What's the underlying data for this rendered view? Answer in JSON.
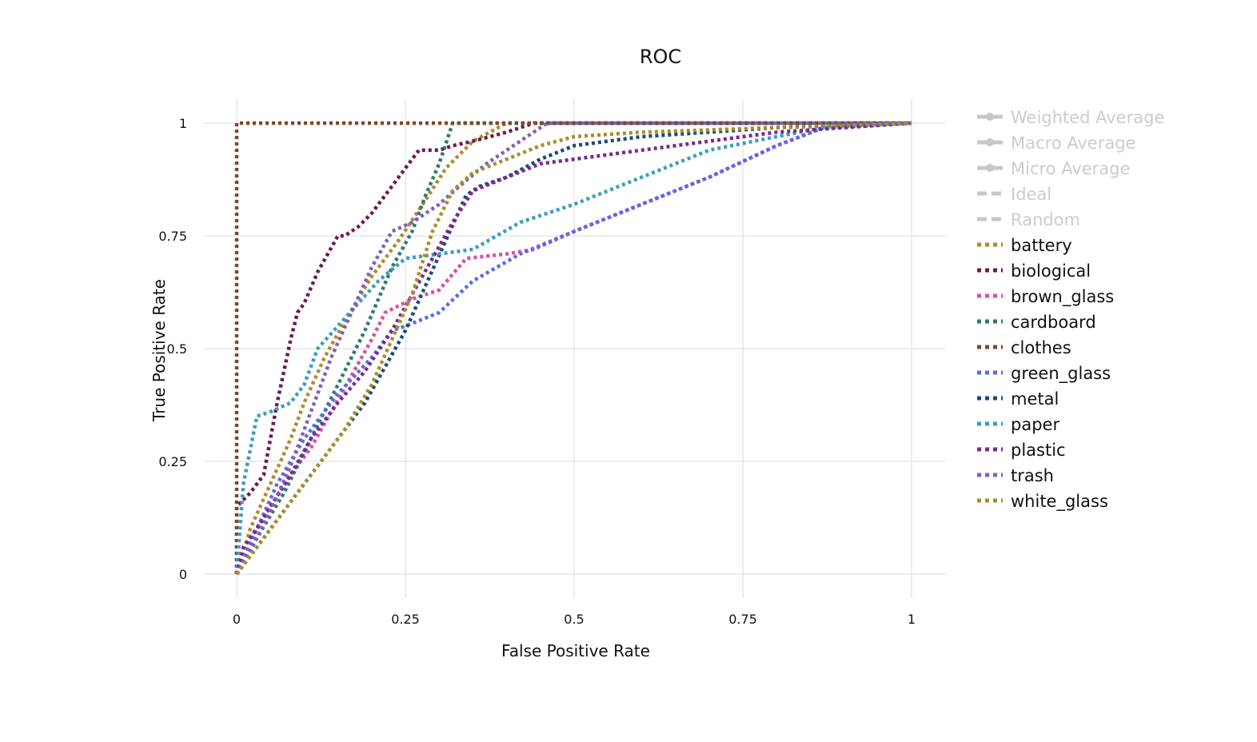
{
  "chart_data": {
    "type": "line",
    "title": "ROC",
    "xlabel": "False Positive Rate",
    "ylabel": "True Positive Rate",
    "xlim": [
      0,
      1
    ],
    "ylim": [
      0,
      1
    ],
    "x_ticks": [
      "0",
      "0.25",
      "0.5",
      "0.75",
      "1"
    ],
    "y_ticks": [
      "0",
      "0.25",
      "0.5",
      "0.75",
      "1"
    ],
    "grid": true,
    "legend_position": "right",
    "legend": [
      {
        "name": "Weighted Average",
        "color": "#c8c8c8",
        "style": "solid-marker",
        "hidden": true
      },
      {
        "name": "Macro Average",
        "color": "#c8c8c8",
        "style": "solid-marker",
        "hidden": true
      },
      {
        "name": "Micro Average",
        "color": "#c8c8c8",
        "style": "solid-marker",
        "hidden": true
      },
      {
        "name": "Ideal",
        "color": "#c8c8c8",
        "style": "dash",
        "hidden": true
      },
      {
        "name": "Random",
        "color": "#c8c8c8",
        "style": "dash",
        "hidden": true
      },
      {
        "name": "battery",
        "color": "#b08a2e",
        "style": "dot",
        "hidden": false
      },
      {
        "name": "biological",
        "color": "#6e1a4e",
        "style": "dot",
        "hidden": false
      },
      {
        "name": "brown_glass",
        "color": "#d84fa6",
        "style": "dot",
        "hidden": false
      },
      {
        "name": "cardboard",
        "color": "#2f7a6e",
        "style": "dot",
        "hidden": false
      },
      {
        "name": "clothes",
        "color": "#7a4a28",
        "style": "dot",
        "hidden": false
      },
      {
        "name": "green_glass",
        "color": "#5a6ae8",
        "style": "dot",
        "hidden": false
      },
      {
        "name": "metal",
        "color": "#1e4a7a",
        "style": "dot",
        "hidden": false
      },
      {
        "name": "paper",
        "color": "#3b9dc2",
        "style": "dot",
        "hidden": false
      },
      {
        "name": "plastic",
        "color": "#7a2a8e",
        "style": "dot",
        "hidden": false
      },
      {
        "name": "trash",
        "color": "#8060b8",
        "style": "dot",
        "hidden": false
      },
      {
        "name": "white_glass",
        "color": "#a88e2a",
        "style": "dot",
        "hidden": false
      }
    ],
    "series": [
      {
        "name": "battery",
        "color": "#b08a2e",
        "points": [
          [
            0,
            0
          ],
          [
            0.02,
            0.1
          ],
          [
            0.05,
            0.2
          ],
          [
            0.08,
            0.3
          ],
          [
            0.1,
            0.38
          ],
          [
            0.13,
            0.48
          ],
          [
            0.16,
            0.56
          ],
          [
            0.2,
            0.66
          ],
          [
            0.24,
            0.74
          ],
          [
            0.28,
            0.83
          ],
          [
            0.31,
            0.9
          ],
          [
            0.35,
            0.96
          ],
          [
            0.4,
            1
          ],
          [
            1,
            1
          ]
        ]
      },
      {
        "name": "biological",
        "color": "#6e1a4e",
        "points": [
          [
            0,
            0
          ],
          [
            0,
            0.15
          ],
          [
            0.02,
            0.18
          ],
          [
            0.04,
            0.22
          ],
          [
            0.05,
            0.3
          ],
          [
            0.06,
            0.38
          ],
          [
            0.07,
            0.45
          ],
          [
            0.08,
            0.52
          ],
          [
            0.09,
            0.58
          ],
          [
            0.1,
            0.6
          ],
          [
            0.12,
            0.67
          ],
          [
            0.15,
            0.75
          ],
          [
            0.16,
            0.75
          ],
          [
            0.18,
            0.77
          ],
          [
            0.2,
            0.8
          ],
          [
            0.22,
            0.84
          ],
          [
            0.25,
            0.9
          ],
          [
            0.27,
            0.94
          ],
          [
            0.3,
            0.94
          ],
          [
            0.32,
            0.95
          ],
          [
            0.35,
            0.96
          ],
          [
            0.4,
            0.98
          ],
          [
            0.44,
            1
          ],
          [
            1,
            1
          ]
        ]
      },
      {
        "name": "brown_glass",
        "color": "#d84fa6",
        "points": [
          [
            0,
            0
          ],
          [
            0.02,
            0.08
          ],
          [
            0.05,
            0.15
          ],
          [
            0.08,
            0.22
          ],
          [
            0.11,
            0.28
          ],
          [
            0.14,
            0.36
          ],
          [
            0.17,
            0.44
          ],
          [
            0.2,
            0.52
          ],
          [
            0.22,
            0.58
          ],
          [
            0.26,
            0.61
          ],
          [
            0.3,
            0.63
          ],
          [
            0.34,
            0.7
          ],
          [
            0.4,
            0.71
          ],
          [
            0.44,
            0.72
          ],
          [
            0.5,
            0.76
          ],
          [
            0.6,
            0.82
          ],
          [
            0.7,
            0.88
          ],
          [
            0.8,
            0.95
          ],
          [
            0.87,
            0.99
          ],
          [
            1,
            1
          ]
        ]
      },
      {
        "name": "cardboard",
        "color": "#2f7a6e",
        "points": [
          [
            0,
            0
          ],
          [
            0.03,
            0.08
          ],
          [
            0.07,
            0.18
          ],
          [
            0.11,
            0.3
          ],
          [
            0.15,
            0.42
          ],
          [
            0.19,
            0.54
          ],
          [
            0.23,
            0.68
          ],
          [
            0.26,
            0.76
          ],
          [
            0.28,
            0.84
          ],
          [
            0.3,
            0.91
          ],
          [
            0.32,
            1
          ],
          [
            1,
            1
          ]
        ]
      },
      {
        "name": "clothes",
        "color": "#7a4a28",
        "points": [
          [
            0,
            0
          ],
          [
            0,
            1
          ],
          [
            1,
            1
          ]
        ]
      },
      {
        "name": "green_glass",
        "color": "#5a6ae8",
        "points": [
          [
            0,
            0
          ],
          [
            0.03,
            0.1
          ],
          [
            0.06,
            0.2
          ],
          [
            0.1,
            0.3
          ],
          [
            0.15,
            0.4
          ],
          [
            0.2,
            0.48
          ],
          [
            0.23,
            0.54
          ],
          [
            0.25,
            0.55
          ],
          [
            0.3,
            0.58
          ],
          [
            0.35,
            0.65
          ],
          [
            0.42,
            0.71
          ],
          [
            0.5,
            0.76
          ],
          [
            0.6,
            0.82
          ],
          [
            0.7,
            0.88
          ],
          [
            0.8,
            0.95
          ],
          [
            0.87,
            0.99
          ],
          [
            1,
            1
          ]
        ]
      },
      {
        "name": "metal",
        "color": "#1e4a7a",
        "points": [
          [
            0,
            0
          ],
          [
            0.04,
            0.08
          ],
          [
            0.08,
            0.16
          ],
          [
            0.12,
            0.24
          ],
          [
            0.15,
            0.3
          ],
          [
            0.19,
            0.38
          ],
          [
            0.22,
            0.46
          ],
          [
            0.25,
            0.54
          ],
          [
            0.28,
            0.64
          ],
          [
            0.31,
            0.74
          ],
          [
            0.34,
            0.84
          ],
          [
            0.36,
            0.86
          ],
          [
            0.4,
            0.88
          ],
          [
            0.45,
            0.92
          ],
          [
            0.5,
            0.95
          ],
          [
            0.6,
            0.97
          ],
          [
            0.8,
            0.99
          ],
          [
            1,
            1
          ]
        ]
      },
      {
        "name": "paper",
        "color": "#3b9dc2",
        "points": [
          [
            0,
            0
          ],
          [
            0.01,
            0.2
          ],
          [
            0.03,
            0.35
          ],
          [
            0.05,
            0.36
          ],
          [
            0.08,
            0.38
          ],
          [
            0.1,
            0.42
          ],
          [
            0.12,
            0.5
          ],
          [
            0.15,
            0.55
          ],
          [
            0.18,
            0.6
          ],
          [
            0.21,
            0.65
          ],
          [
            0.25,
            0.7
          ],
          [
            0.3,
            0.71
          ],
          [
            0.35,
            0.72
          ],
          [
            0.42,
            0.78
          ],
          [
            0.5,
            0.82
          ],
          [
            0.6,
            0.88
          ],
          [
            0.7,
            0.94
          ],
          [
            0.8,
            0.97
          ],
          [
            0.87,
            0.99
          ],
          [
            1,
            1
          ]
        ]
      },
      {
        "name": "plastic",
        "color": "#7a2a8e",
        "points": [
          [
            0,
            0
          ],
          [
            0.01,
            0.06
          ],
          [
            0.03,
            0.1
          ],
          [
            0.05,
            0.15
          ],
          [
            0.08,
            0.22
          ],
          [
            0.11,
            0.3
          ],
          [
            0.15,
            0.38
          ],
          [
            0.19,
            0.45
          ],
          [
            0.23,
            0.54
          ],
          [
            0.26,
            0.62
          ],
          [
            0.29,
            0.7
          ],
          [
            0.32,
            0.78
          ],
          [
            0.35,
            0.85
          ],
          [
            0.4,
            0.88
          ],
          [
            0.45,
            0.91
          ],
          [
            0.5,
            0.92
          ],
          [
            0.6,
            0.94
          ],
          [
            0.7,
            0.96
          ],
          [
            0.8,
            0.98
          ],
          [
            1,
            1
          ]
        ]
      },
      {
        "name": "trash",
        "color": "#8060b8",
        "points": [
          [
            0,
            0
          ],
          [
            0.02,
            0.05
          ],
          [
            0.05,
            0.14
          ],
          [
            0.08,
            0.24
          ],
          [
            0.11,
            0.36
          ],
          [
            0.14,
            0.48
          ],
          [
            0.17,
            0.58
          ],
          [
            0.2,
            0.68
          ],
          [
            0.23,
            0.76
          ],
          [
            0.26,
            0.78
          ],
          [
            0.3,
            0.82
          ],
          [
            0.33,
            0.86
          ],
          [
            0.37,
            0.91
          ],
          [
            0.42,
            0.96
          ],
          [
            0.46,
            1
          ],
          [
            1,
            1
          ]
        ]
      },
      {
        "name": "white_glass",
        "color": "#a88e2a",
        "points": [
          [
            0,
            0
          ],
          [
            0.04,
            0.08
          ],
          [
            0.08,
            0.16
          ],
          [
            0.12,
            0.24
          ],
          [
            0.16,
            0.32
          ],
          [
            0.2,
            0.42
          ],
          [
            0.23,
            0.52
          ],
          [
            0.26,
            0.62
          ],
          [
            0.29,
            0.76
          ],
          [
            0.32,
            0.85
          ],
          [
            0.35,
            0.89
          ],
          [
            0.4,
            0.92
          ],
          [
            0.45,
            0.95
          ],
          [
            0.5,
            0.97
          ],
          [
            0.6,
            0.98
          ],
          [
            0.8,
            0.99
          ],
          [
            1,
            1
          ]
        ]
      }
    ]
  }
}
